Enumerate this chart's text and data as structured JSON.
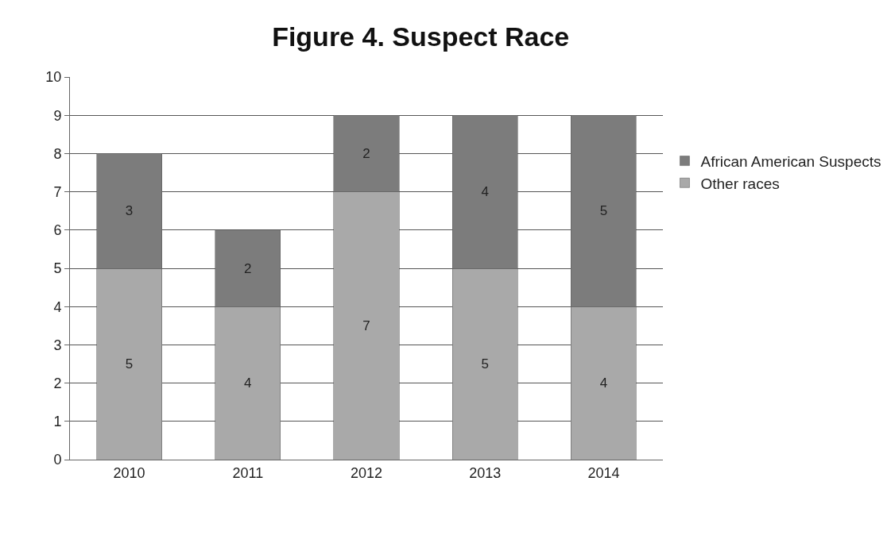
{
  "chart_data": {
    "type": "bar",
    "title": "Figure 4. Suspect Race",
    "categories": [
      "2010",
      "2011",
      "2012",
      "2013",
      "2014"
    ],
    "stacked": true,
    "series": [
      {
        "name": "Other races",
        "color": "#a9a9a9",
        "values": [
          5,
          4,
          7,
          5,
          4
        ]
      },
      {
        "name": "African American Suspects",
        "color": "#7c7c7c",
        "values": [
          3,
          2,
          2,
          4,
          5
        ]
      }
    ],
    "ylim": [
      0,
      10
    ],
    "yticks": [
      0,
      1,
      2,
      3,
      4,
      5,
      6,
      7,
      8,
      9,
      10
    ],
    "grid": "y",
    "legend": "right",
    "data_labels": true
  }
}
